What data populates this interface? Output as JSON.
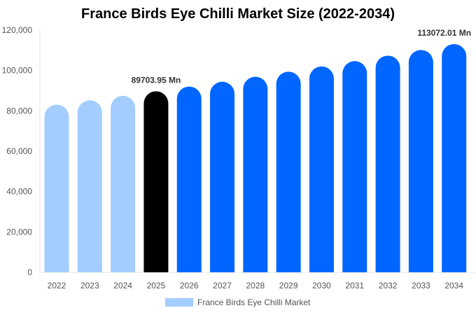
{
  "chart_data": {
    "type": "bar",
    "title": "France Birds Eye Chilli Market Size (2022-2034)",
    "categories": [
      "2022",
      "2023",
      "2024",
      "2025",
      "2026",
      "2027",
      "2028",
      "2029",
      "2030",
      "2031",
      "2032",
      "2033",
      "2034"
    ],
    "series": [
      {
        "name": "France Birds Eye Chilli Market",
        "values": [
          83055,
          85215,
          87430,
          89703.95,
          92036,
          94428,
          96883,
          99402,
          101987,
          104638,
          107359,
          110150,
          113072.01
        ]
      }
    ],
    "data_labels": [
      {
        "category": "2025",
        "text": "89703.95 Mn"
      },
      {
        "category": "2034",
        "text": "113072.01 Mn"
      }
    ],
    "ylim": [
      0,
      120000
    ],
    "yticks": [
      "0",
      "20,000",
      "40,000",
      "60,000",
      "80,000",
      "100,000",
      "120,000"
    ],
    "xlabel": "",
    "ylabel": "",
    "grid": false,
    "legend": "bottom",
    "colors": {
      "historical": "#a3cdff",
      "current": "#000000",
      "forecast": "#0066ff"
    }
  }
}
